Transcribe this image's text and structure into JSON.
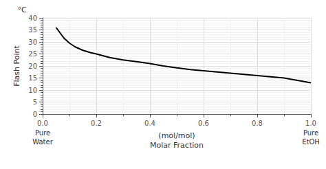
{
  "chart_data": {
    "type": "line",
    "x": [
      0.05,
      0.08,
      0.1,
      0.12,
      0.15,
      0.18,
      0.2,
      0.25,
      0.3,
      0.35,
      0.4,
      0.45,
      0.5,
      0.55,
      0.6,
      0.65,
      0.7,
      0.75,
      0.8,
      0.85,
      0.9,
      0.95,
      1.0
    ],
    "values": [
      36.0,
      31.5,
      29.5,
      28.0,
      26.5,
      25.5,
      25.0,
      23.5,
      22.5,
      21.8,
      21.0,
      20.0,
      19.2,
      18.5,
      18.0,
      17.5,
      17.0,
      16.5,
      16.0,
      15.5,
      15.0,
      14.0,
      13.0
    ],
    "color": "#000000",
    "xlim": [
      0.0,
      1.0
    ],
    "ylim": [
      0,
      40
    ],
    "xticks": [
      {
        "value": 0,
        "label": "0.0"
      },
      0.2,
      0.4,
      0.6,
      0.8,
      {
        "value": 1,
        "label": "1.0"
      }
    ],
    "yticks": [
      0,
      5,
      10,
      15,
      20,
      25,
      30,
      35,
      40
    ],
    "xlabel": [
      "(mol/mol)",
      "Molar Fraction"
    ],
    "ylabel": "Flash Point",
    "ylabel_unit": "°C",
    "annotations": [
      {
        "x": 0.0,
        "lines": [
          "Pure",
          "Water"
        ]
      },
      {
        "x": 1.0,
        "lines": [
          "Pure",
          "EtOH"
        ]
      }
    ],
    "grid": true
  }
}
